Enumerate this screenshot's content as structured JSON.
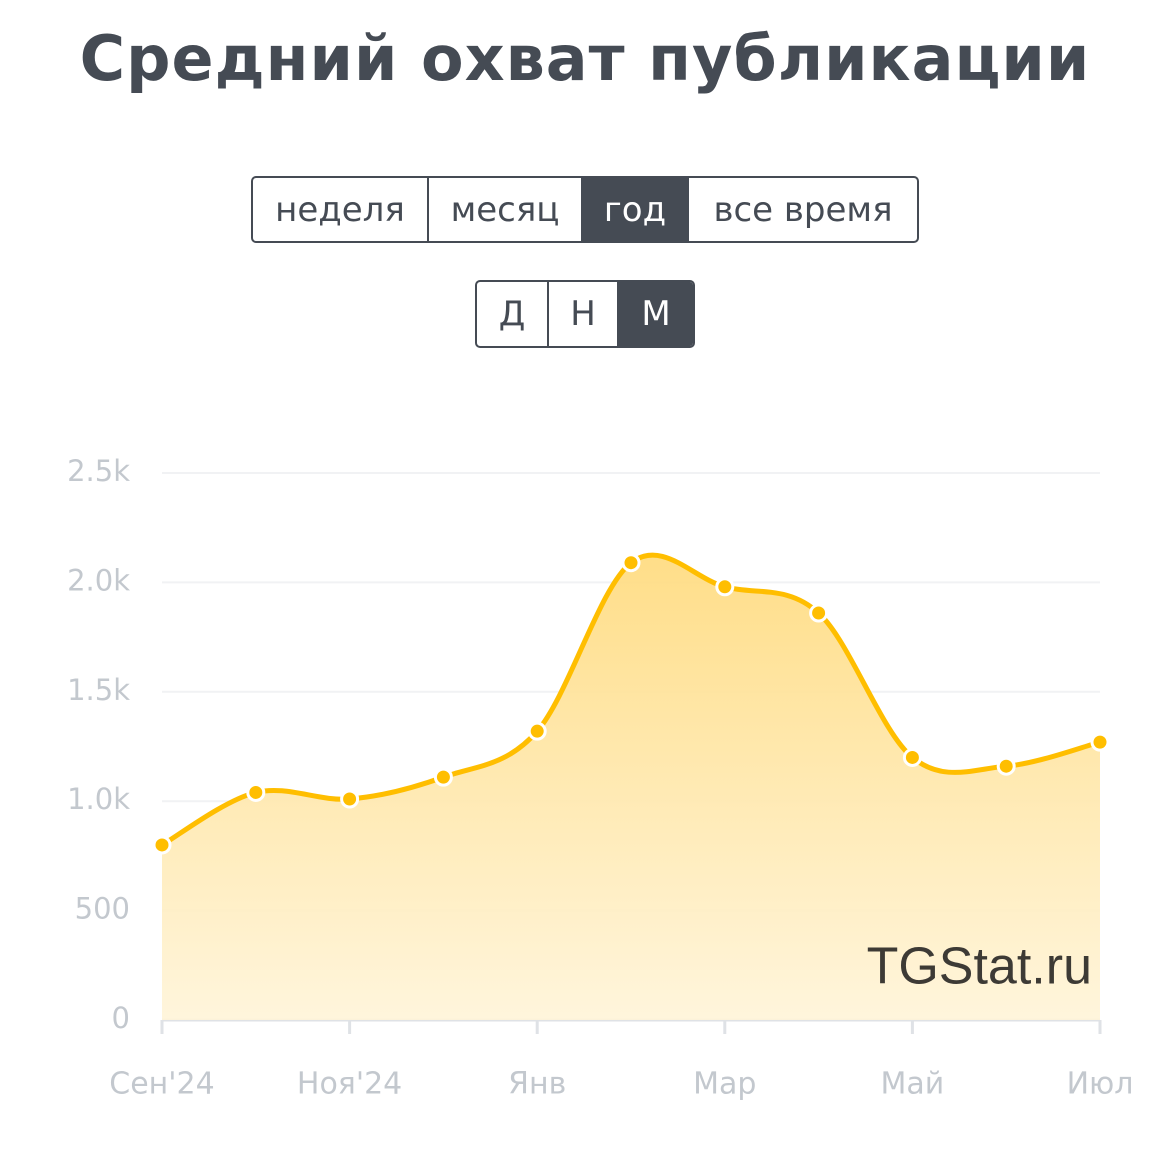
{
  "header": {
    "title": "Средний охват публикации"
  },
  "controls": {
    "period": {
      "options": [
        "неделя",
        "месяц",
        "год",
        "все время"
      ],
      "selected": 2
    },
    "granularity": {
      "options": [
        "Д",
        "Н",
        "М"
      ],
      "selected": 2
    }
  },
  "chart_data": {
    "type": "area",
    "categories": [
      "Сен'24",
      null,
      "Ноя'24",
      null,
      "Янв",
      null,
      "Мар",
      null,
      "Май",
      null,
      "Июл"
    ],
    "series": [
      {
        "color": "#ffbe00",
        "values": [
          800,
          1040,
          1010,
          1110,
          1320,
          2090,
          1980,
          1860,
          1200,
          1160,
          1270
        ]
      }
    ],
    "ylim": [
      0,
      2500
    ],
    "yticks": [
      0,
      500,
      {
        "value": 1000,
        "label": "1.0k"
      },
      {
        "value": 1500,
        "label": "1.5k"
      },
      {
        "value": 2000,
        "label": "2.0k"
      },
      {
        "value": 2500,
        "label": "2.5k"
      }
    ],
    "grid": true,
    "watermark": "TGStat.ru"
  }
}
